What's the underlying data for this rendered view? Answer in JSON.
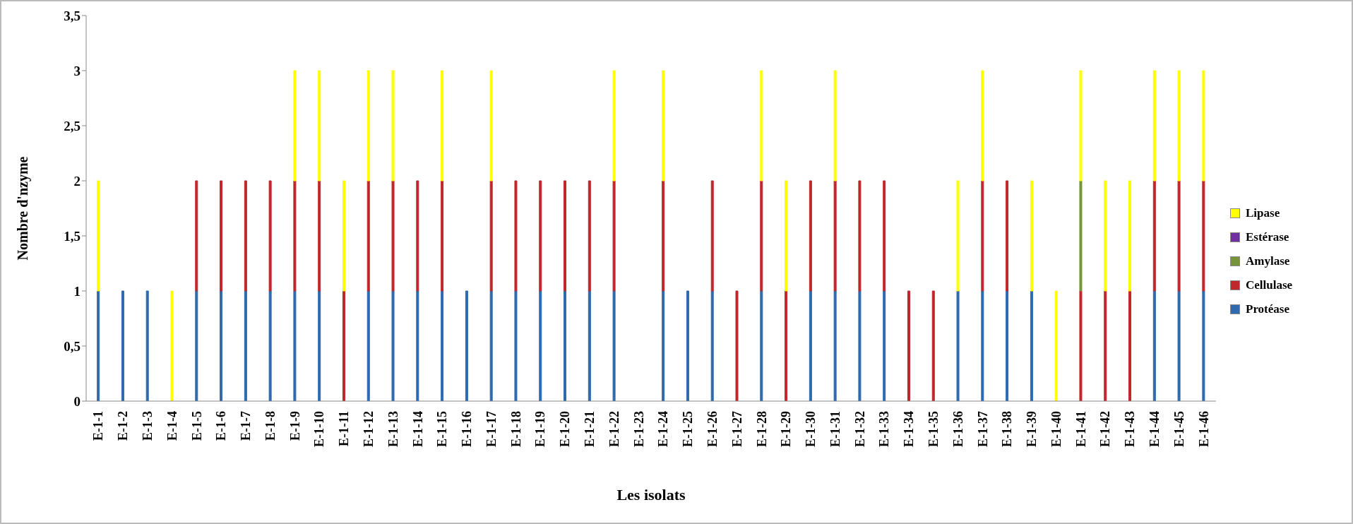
{
  "chart_data": {
    "type": "bar",
    "stacked": true,
    "xlabel": "Les isolats",
    "ylabel": "Nombre d'nzyme",
    "categories": [
      "E-1-1",
      "E-1-2",
      "E-1-3",
      "E-1-4",
      "E-1-5",
      "E-1-6",
      "E-1-7",
      "E-1-8",
      "E-1-9",
      "E-1-10",
      "E-1-11",
      "E-1-12",
      "E-1-13",
      "E-1-14",
      "E-1-15",
      "E-1-16",
      "E-1-17",
      "E-1-18",
      "E-1-19",
      "E-1-20",
      "E-1-21",
      "E-1-22",
      "E-1-23",
      "E-1-24",
      "E-1-25",
      "E-1-26",
      "E-1-27",
      "E-1-28",
      "E-1-29",
      "E-1-30",
      "E-1-31",
      "E-1-32",
      "E-1-33",
      "E-1-34",
      "E-1-35",
      "E-1-36",
      "E-1-37",
      "E-1-38",
      "E-1-39",
      "E-1-40",
      "E-1-41",
      "E-1-42",
      "E-1-43",
      "E-1-44",
      "E-1-45",
      "E-1-46"
    ],
    "series": [
      {
        "name": "Protéase",
        "color": "#2e6aad",
        "values": [
          1,
          1,
          1,
          0,
          1,
          1,
          1,
          1,
          1,
          1,
          0,
          1,
          1,
          1,
          1,
          1,
          1,
          1,
          1,
          1,
          1,
          1,
          0,
          1,
          1,
          1,
          0,
          1,
          0,
          1,
          1,
          1,
          1,
          0,
          0,
          1,
          1,
          1,
          1,
          0,
          0,
          0,
          0,
          1,
          1,
          1
        ]
      },
      {
        "name": "Cellulase",
        "color": "#c0272d",
        "values": [
          0,
          0,
          0,
          0,
          1,
          1,
          1,
          1,
          1,
          1,
          1,
          1,
          1,
          1,
          1,
          0,
          1,
          1,
          1,
          1,
          1,
          1,
          0,
          1,
          0,
          1,
          1,
          1,
          1,
          1,
          1,
          1,
          1,
          1,
          1,
          0,
          1,
          1,
          0,
          0,
          1,
          1,
          1,
          1,
          1,
          1
        ]
      },
      {
        "name": "Amylase",
        "color": "#77933c",
        "values": [
          0,
          0,
          0,
          0,
          0,
          0,
          0,
          0,
          0,
          0,
          0,
          0,
          0,
          0,
          0,
          0,
          0,
          0,
          0,
          0,
          0,
          0,
          0,
          0,
          0,
          0,
          0,
          0,
          0,
          0,
          0,
          0,
          0,
          0,
          0,
          0,
          0,
          0,
          0,
          0,
          1,
          0,
          0,
          0,
          0,
          0
        ]
      },
      {
        "name": "Estérase",
        "color": "#7030a0",
        "values": [
          0,
          0,
          0,
          0,
          0,
          0,
          0,
          0,
          0,
          0,
          0,
          0,
          0,
          0,
          0,
          0,
          0,
          0,
          0,
          0,
          0,
          0,
          0,
          0,
          0,
          0,
          0,
          0,
          0,
          0,
          0,
          0,
          0,
          0,
          0,
          0,
          0,
          0,
          0,
          0,
          0,
          0,
          0,
          0,
          0,
          0
        ]
      },
      {
        "name": "Lipase",
        "color": "#ffff00",
        "values": [
          1,
          0,
          0,
          1,
          0,
          0,
          0,
          0,
          1,
          1,
          1,
          1,
          1,
          0,
          1,
          0,
          1,
          0,
          0,
          0,
          0,
          1,
          0,
          1,
          0,
          0,
          0,
          1,
          1,
          0,
          1,
          0,
          0,
          0,
          0,
          1,
          1,
          0,
          1,
          1,
          1,
          1,
          1,
          1,
          1,
          1
        ]
      }
    ],
    "ylim": [
      0,
      3.5
    ],
    "yticks": [
      0,
      {
        "value": 0.5,
        "label": "0,5"
      },
      1,
      {
        "value": 1.5,
        "label": "1,5"
      },
      2,
      {
        "value": 2.5,
        "label": "2,5"
      },
      3,
      {
        "value": 3.5,
        "label": "3,5"
      }
    ],
    "grid": false,
    "legend": "right"
  }
}
